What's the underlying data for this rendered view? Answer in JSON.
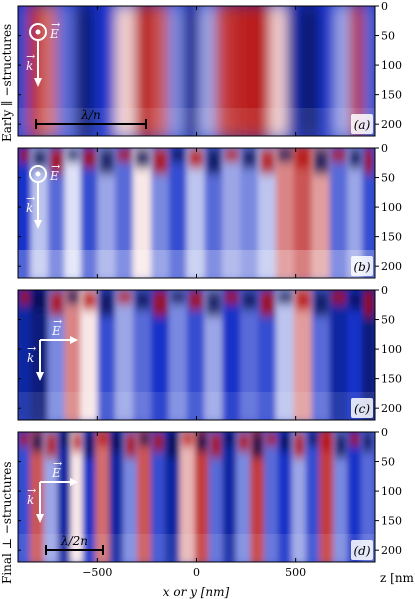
{
  "figure": {
    "panels": [
      {
        "label": "(a)",
        "field_label": "E",
        "field_sym": "→",
        "wave_label": "k",
        "scale_label": "λ/n",
        "field_dir": "out-of-plane"
      },
      {
        "label": "(b)",
        "field_label": "E",
        "field_sym": "→",
        "wave_label": "k",
        "scale_label": "",
        "field_dir": "out-of-plane"
      },
      {
        "label": "(c)",
        "field_label": "E",
        "field_sym": "→",
        "wave_label": "k",
        "scale_label": "",
        "field_dir": "in-plane"
      },
      {
        "label": "(d)",
        "field_label": "E",
        "field_sym": "→",
        "wave_label": "k",
        "scale_label": "λ/2n",
        "field_dir": "in-plane"
      }
    ],
    "row_labels": {
      "top": "Early ∥ −structures",
      "bottom": "Final ⊥ −structures"
    },
    "colors": {
      "red": "#b40b0b",
      "blue": "#1530c8",
      "navy": "#0a0f55",
      "white": "#ffffff"
    }
  },
  "chart_data": {
    "type": "heatmap",
    "xlabel": "x or y [nm]",
    "zlabel": "z [nm]",
    "x_ticks": [
      "−500",
      "0",
      "500"
    ],
    "x_tick_values": [
      -500,
      0,
      500
    ],
    "xlim": [
      -900,
      900
    ],
    "z_ticks": [
      "0",
      "50",
      "100",
      "150",
      "200"
    ],
    "z_tick_values": [
      0,
      50,
      100,
      150,
      200
    ],
    "zlim": [
      0,
      220
    ],
    "panels": [
      {
        "label": "(a)",
        "columns": [
          {
            "x": -870,
            "v": -0.6
          },
          {
            "x": -820,
            "v": 0.9
          },
          {
            "x": -740,
            "v": 0.6
          },
          {
            "x": -660,
            "v": -0.5
          },
          {
            "x": -560,
            "v": -0.9
          },
          {
            "x": -460,
            "v": -0.7
          },
          {
            "x": -350,
            "v": 0.2
          },
          {
            "x": -260,
            "v": 0.95
          },
          {
            "x": -180,
            "v": 0.7
          },
          {
            "x": -100,
            "v": -0.4
          },
          {
            "x": -20,
            "v": -0.85
          },
          {
            "x": 60,
            "v": -0.3
          },
          {
            "x": 140,
            "v": 0.8
          },
          {
            "x": 230,
            "v": 0.9
          },
          {
            "x": 330,
            "v": 0.95
          },
          {
            "x": 420,
            "v": 0.2
          },
          {
            "x": 500,
            "v": -0.8
          },
          {
            "x": 580,
            "v": -0.95
          },
          {
            "x": 660,
            "v": -0.7
          },
          {
            "x": 740,
            "v": -0.3
          },
          {
            "x": 820,
            "v": 0.9
          },
          {
            "x": 870,
            "v": -0.5
          }
        ]
      },
      {
        "label": "(b)",
        "columns": [
          {
            "x": -870,
            "v": -0.7
          },
          {
            "x": -790,
            "v": -0.2
          },
          {
            "x": -700,
            "v": -0.5
          },
          {
            "x": -620,
            "v": -0.1
          },
          {
            "x": -540,
            "v": -0.6
          },
          {
            "x": -450,
            "v": -0.3
          },
          {
            "x": -360,
            "v": -0.5
          },
          {
            "x": -270,
            "v": 0.1
          },
          {
            "x": -180,
            "v": -0.4
          },
          {
            "x": -90,
            "v": -0.6
          },
          {
            "x": 0,
            "v": -0.2
          },
          {
            "x": 90,
            "v": -0.5
          },
          {
            "x": 180,
            "v": -0.3
          },
          {
            "x": 270,
            "v": -0.4
          },
          {
            "x": 360,
            "v": -0.2
          },
          {
            "x": 450,
            "v": 0.5
          },
          {
            "x": 540,
            "v": 0.7
          },
          {
            "x": 630,
            "v": 0.4
          },
          {
            "x": 720,
            "v": -0.5
          },
          {
            "x": 810,
            "v": -0.3
          },
          {
            "x": 870,
            "v": -0.6
          }
        ]
      },
      {
        "label": "(c)",
        "columns": [
          {
            "x": -870,
            "v": -0.8
          },
          {
            "x": -790,
            "v": -0.9
          },
          {
            "x": -700,
            "v": -0.4
          },
          {
            "x": -620,
            "v": 0.5
          },
          {
            "x": -540,
            "v": 0.1
          },
          {
            "x": -450,
            "v": -0.6
          },
          {
            "x": -360,
            "v": -0.3
          },
          {
            "x": -270,
            "v": -0.5
          },
          {
            "x": -180,
            "v": -0.7
          },
          {
            "x": -90,
            "v": -0.4
          },
          {
            "x": 0,
            "v": -0.6
          },
          {
            "x": 90,
            "v": -0.3
          },
          {
            "x": 180,
            "v": -0.7
          },
          {
            "x": 270,
            "v": -0.5
          },
          {
            "x": 360,
            "v": -0.6
          },
          {
            "x": 450,
            "v": -0.2
          },
          {
            "x": 540,
            "v": 0.4
          },
          {
            "x": 630,
            "v": -0.5
          },
          {
            "x": 720,
            "v": -0.8
          },
          {
            "x": 810,
            "v": -0.7
          },
          {
            "x": 870,
            "v": -0.9
          }
        ]
      },
      {
        "label": "(d)",
        "columns": [
          {
            "x": -870,
            "v": -0.6
          },
          {
            "x": -800,
            "v": 0.7
          },
          {
            "x": -730,
            "v": -0.3
          },
          {
            "x": -660,
            "v": -0.8
          },
          {
            "x": -600,
            "v": 0.1
          },
          {
            "x": -540,
            "v": -0.7
          },
          {
            "x": -470,
            "v": 0.6
          },
          {
            "x": -400,
            "v": -0.8
          },
          {
            "x": -330,
            "v": -0.4
          },
          {
            "x": -260,
            "v": 0.7
          },
          {
            "x": -190,
            "v": -0.6
          },
          {
            "x": -120,
            "v": -0.8
          },
          {
            "x": -40,
            "v": 0.3
          },
          {
            "x": 30,
            "v": 0.8
          },
          {
            "x": 100,
            "v": -0.5
          },
          {
            "x": 170,
            "v": -0.8
          },
          {
            "x": 240,
            "v": -0.4
          },
          {
            "x": 310,
            "v": 0.8
          },
          {
            "x": 380,
            "v": -0.5
          },
          {
            "x": 450,
            "v": -0.7
          },
          {
            "x": 520,
            "v": -0.3
          },
          {
            "x": 590,
            "v": -0.6
          },
          {
            "x": 660,
            "v": 0.8
          },
          {
            "x": 730,
            "v": -0.4
          },
          {
            "x": 800,
            "v": -0.7
          },
          {
            "x": 870,
            "v": -0.5
          }
        ]
      }
    ]
  }
}
